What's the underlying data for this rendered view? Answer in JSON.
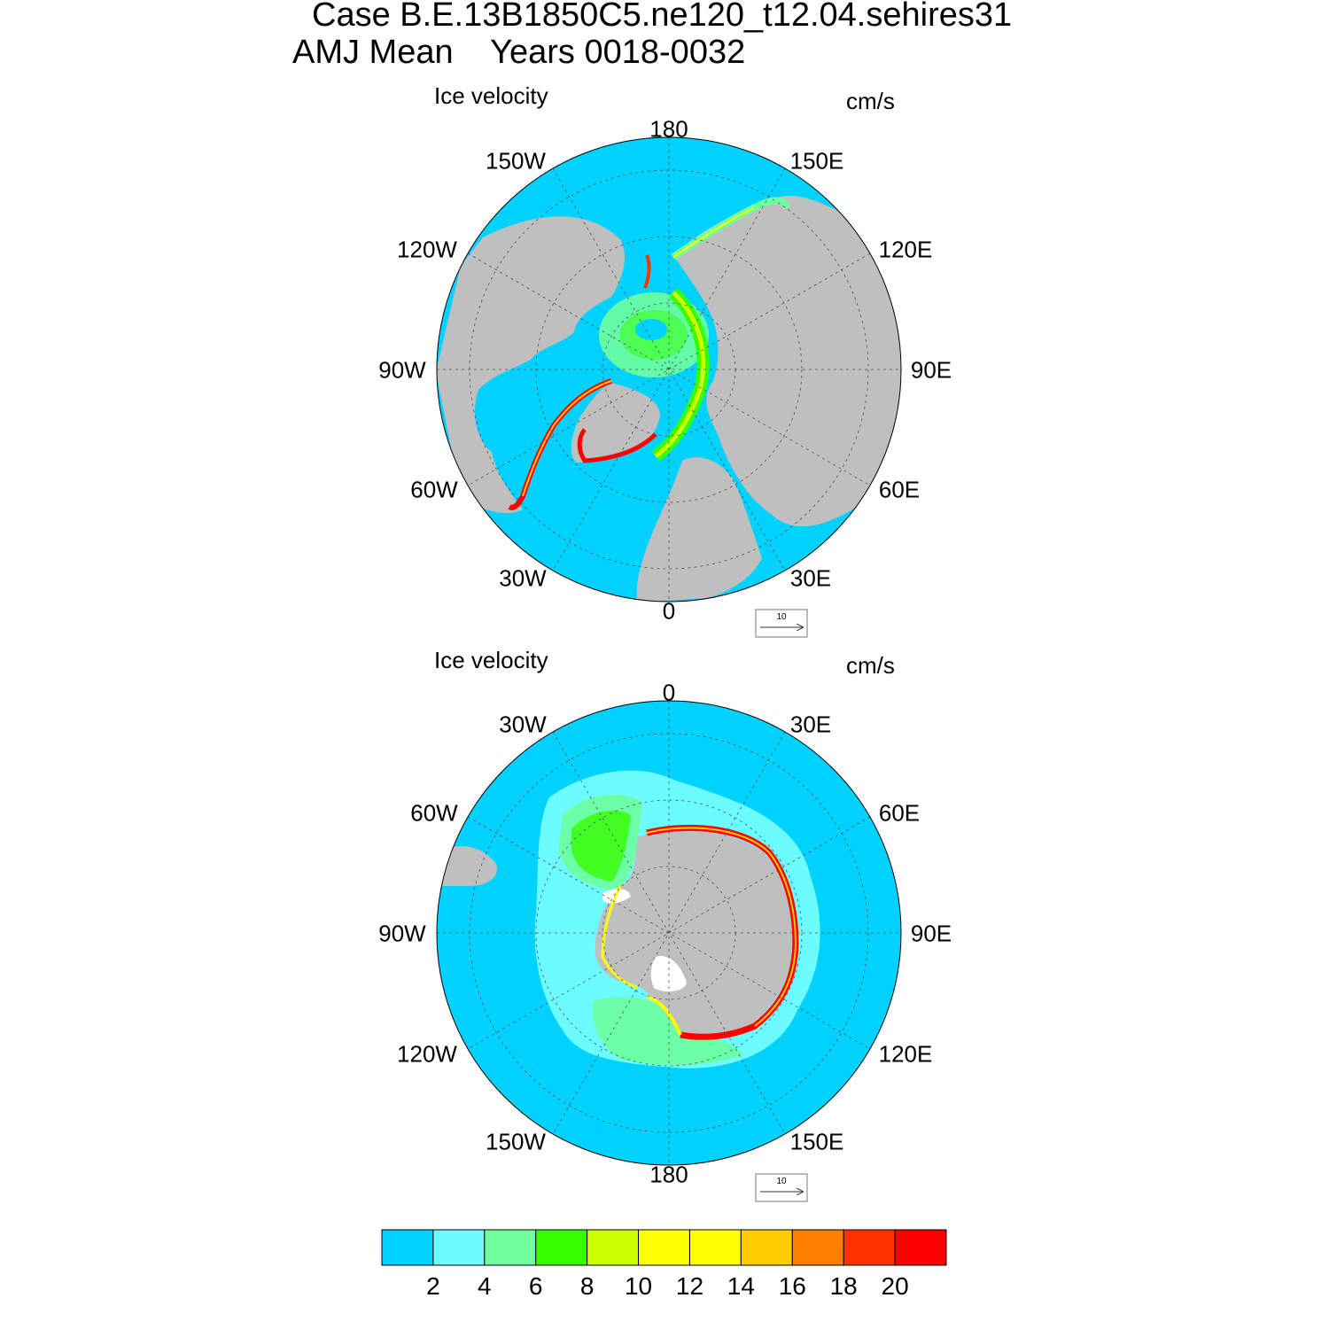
{
  "title": {
    "line1": "Case B.E.13B1850C5.ne120_t12.04.sehires31",
    "line2": "AMJ Mean    Years 0018-0032"
  },
  "panels": [
    {
      "id": "north",
      "subtitle": "Ice velocity",
      "units": "cm/s",
      "lon_labels": [
        "180",
        "150E",
        "120E",
        "90E",
        "60E",
        "30E",
        "0",
        "30W",
        "60W",
        "90W",
        "120W",
        "150W"
      ],
      "reference_vector": "10"
    },
    {
      "id": "south",
      "subtitle": "Ice velocity",
      "units": "cm/s",
      "lon_labels": [
        "0",
        "30E",
        "60E",
        "90E",
        "120E",
        "150E",
        "180",
        "150W",
        "120W",
        "90W",
        "60W",
        "30W"
      ],
      "reference_vector": "10"
    }
  ],
  "colorbar": {
    "ticks": [
      "2",
      "4",
      "6",
      "8",
      "10",
      "12",
      "14",
      "16",
      "18",
      "20"
    ],
    "colors": [
      "#00d2ff",
      "#6cfcff",
      "#6eff9f",
      "#36ff00",
      "#ccff00",
      "#ffff00",
      "#ffff00",
      "#ffcc00",
      "#ff8000",
      "#ff3300",
      "#ff0000"
    ]
  },
  "colors": {
    "ocean": "#00d2ff",
    "land": "#bfbfbf"
  }
}
